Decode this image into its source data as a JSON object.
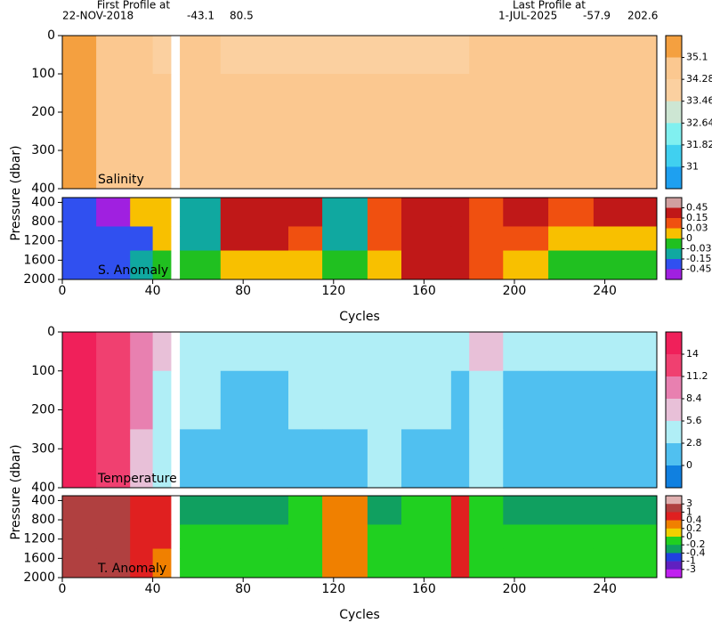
{
  "header": {
    "first_label": "First Profile at",
    "first_date": "22-NOV-2018",
    "first_lat": "-43.1",
    "first_lon": "80.5",
    "last_label": "Last Profile at",
    "last_date": "1-JUL-2025",
    "last_lat": "-57.9",
    "last_lon": "202.6"
  },
  "chart_data": [
    {
      "type": "heatmap",
      "label": "Salinity",
      "ylabel": "Pressure (dbar)",
      "y_reversed": true,
      "xlim": [
        0,
        263
      ],
      "ylim": [
        0,
        400
      ],
      "yticks": [
        0,
        100,
        200,
        300,
        400
      ],
      "x_edges": [
        0,
        15,
        30,
        40,
        48,
        52,
        70,
        100,
        115,
        135,
        150,
        172,
        180,
        195,
        215,
        235,
        263
      ],
      "y_edges": [
        0,
        100,
        250,
        400
      ],
      "values": [
        [
          35.2,
          34.8,
          34.5,
          33.8,
          null,
          34.5,
          33.8,
          33.8,
          33.8,
          33.8,
          33.8,
          33.8,
          34.6,
          34.6,
          34.6,
          34.6
        ],
        [
          35.2,
          35.0,
          34.8,
          34.6,
          null,
          34.6,
          34.6,
          34.6,
          34.6,
          34.6,
          34.6,
          34.6,
          34.6,
          34.6,
          34.6,
          34.6
        ],
        [
          35.2,
          35.0,
          34.9,
          34.7,
          null,
          34.7,
          34.7,
          34.7,
          34.7,
          34.7,
          34.7,
          34.7,
          34.7,
          34.7,
          34.7,
          34.7
        ]
      ],
      "colorbar": {
        "ticks": [
          35.1,
          34.28,
          33.46,
          32.64,
          31.82,
          31
        ],
        "colors": [
          "#f4a040",
          "#fbc890",
          "#fbd0a0",
          "#cde6d3",
          "#80f0f0",
          "#40d0f0",
          "#1ea0f0"
        ]
      }
    },
    {
      "type": "heatmap",
      "label": "S. Anomaly",
      "xlabel": "Cycles",
      "y_reversed": true,
      "xlim": [
        0,
        263
      ],
      "xticks": [
        0,
        40,
        80,
        120,
        160,
        200,
        240
      ],
      "ylim": [
        300,
        2000
      ],
      "yticks": [
        400,
        800,
        1200,
        1600,
        2000
      ],
      "x_edges": [
        0,
        15,
        30,
        40,
        48,
        52,
        70,
        100,
        115,
        135,
        150,
        172,
        180,
        195,
        215,
        235,
        263
      ],
      "y_edges": [
        300,
        900,
        1400,
        2000
      ],
      "values": [
        [
          -0.2,
          -0.5,
          0.0,
          0.02,
          null,
          -0.1,
          0.2,
          0.2,
          -0.1,
          0.1,
          0.2,
          0.2,
          0.05,
          0.2,
          0.1,
          0.2
        ],
        [
          -0.3,
          -0.3,
          -0.2,
          0.02,
          null,
          -0.1,
          0.2,
          0.1,
          -0.05,
          0.1,
          0.2,
          0.2,
          0.1,
          0.05,
          0.01,
          0.02
        ],
        [
          -0.2,
          -0.2,
          -0.1,
          -0.02,
          null,
          -0.02,
          0.01,
          0.01,
          -0.01,
          0.01,
          0.2,
          0.2,
          0.05,
          0.01,
          -0.01,
          -0.02
        ]
      ],
      "colorbar": {
        "ticks": [
          0.45,
          0.15,
          0.03,
          0,
          -0.03,
          -0.15,
          -0.45
        ],
        "colors": [
          "#d0a0a0",
          "#c01818",
          "#f05010",
          "#f8c000",
          "#20c020",
          "#10a8a0",
          "#3050f0",
          "#a020e0"
        ]
      }
    },
    {
      "type": "heatmap",
      "label": "Temperature",
      "ylabel": "Pressure (dbar)",
      "y_reversed": true,
      "xlim": [
        0,
        263
      ],
      "ylim": [
        0,
        400
      ],
      "yticks": [
        0,
        100,
        200,
        300,
        400
      ],
      "x_edges": [
        0,
        15,
        30,
        40,
        48,
        52,
        70,
        100,
        115,
        135,
        150,
        172,
        180,
        195,
        215,
        235,
        263
      ],
      "y_edges": [
        0,
        100,
        250,
        400
      ],
      "values": [
        [
          14.5,
          13,
          10,
          6,
          null,
          4,
          4,
          4.5,
          4,
          5,
          4.5,
          4,
          6,
          4,
          3,
          3.5
        ],
        [
          14.5,
          13,
          9,
          4,
          null,
          3,
          2.5,
          3,
          3,
          3.5,
          3,
          2.5,
          4,
          2.5,
          2.5,
          2.5
        ],
        [
          14.5,
          12,
          7,
          3,
          null,
          2,
          2,
          2.5,
          2,
          3,
          2,
          2,
          3,
          2,
          2,
          2
        ]
      ],
      "colorbar": {
        "ticks": [
          14,
          11.2,
          8.4,
          5.6,
          2.8,
          0
        ],
        "colors": [
          "#f0205a",
          "#f04070",
          "#e880b0",
          "#e8c0d8",
          "#b0eef6",
          "#50c0f0",
          "#1080e0"
        ]
      }
    },
    {
      "type": "heatmap",
      "label": "T. Anomaly",
      "xlabel": "Cycles",
      "y_reversed": true,
      "xlim": [
        0,
        263
      ],
      "xticks": [
        0,
        40,
        80,
        120,
        160,
        200,
        240
      ],
      "ylim": [
        300,
        2000
      ],
      "yticks": [
        400,
        800,
        1200,
        1600,
        2000
      ],
      "x_edges": [
        0,
        15,
        30,
        40,
        48,
        52,
        70,
        100,
        115,
        135,
        150,
        172,
        180,
        195,
        215,
        235,
        263
      ],
      "y_edges": [
        300,
        900,
        1400,
        2000
      ],
      "values": [
        [
          2,
          1.5,
          0.5,
          0.5,
          null,
          -0.3,
          -0.3,
          -0.2,
          0.3,
          -0.3,
          -0.2,
          0.8,
          -0.2,
          -0.3,
          -0.3,
          -0.3
        ],
        [
          1.5,
          1.5,
          0.6,
          0.4,
          null,
          -0.1,
          -0.1,
          -0.1,
          0.3,
          -0.1,
          -0.1,
          0.8,
          -0.1,
          -0.1,
          -0.1,
          -0.1
        ],
        [
          1.5,
          1.2,
          0.5,
          0.3,
          null,
          -0.1,
          -0.05,
          -0.1,
          0.3,
          -0.1,
          -0.1,
          0.5,
          -0.1,
          -0.1,
          -0.1,
          -0.1
        ]
      ],
      "colorbar": {
        "ticks": [
          3,
          1,
          0.4,
          0.2,
          0,
          -0.2,
          -0.4,
          -1,
          -3
        ],
        "colors": [
          "#e0b0b0",
          "#b04040",
          "#e02020",
          "#f08000",
          "#f0d000",
          "#20d020",
          "#10a060",
          "#2040e0",
          "#6020c0",
          "#c020f0"
        ]
      }
    }
  ]
}
